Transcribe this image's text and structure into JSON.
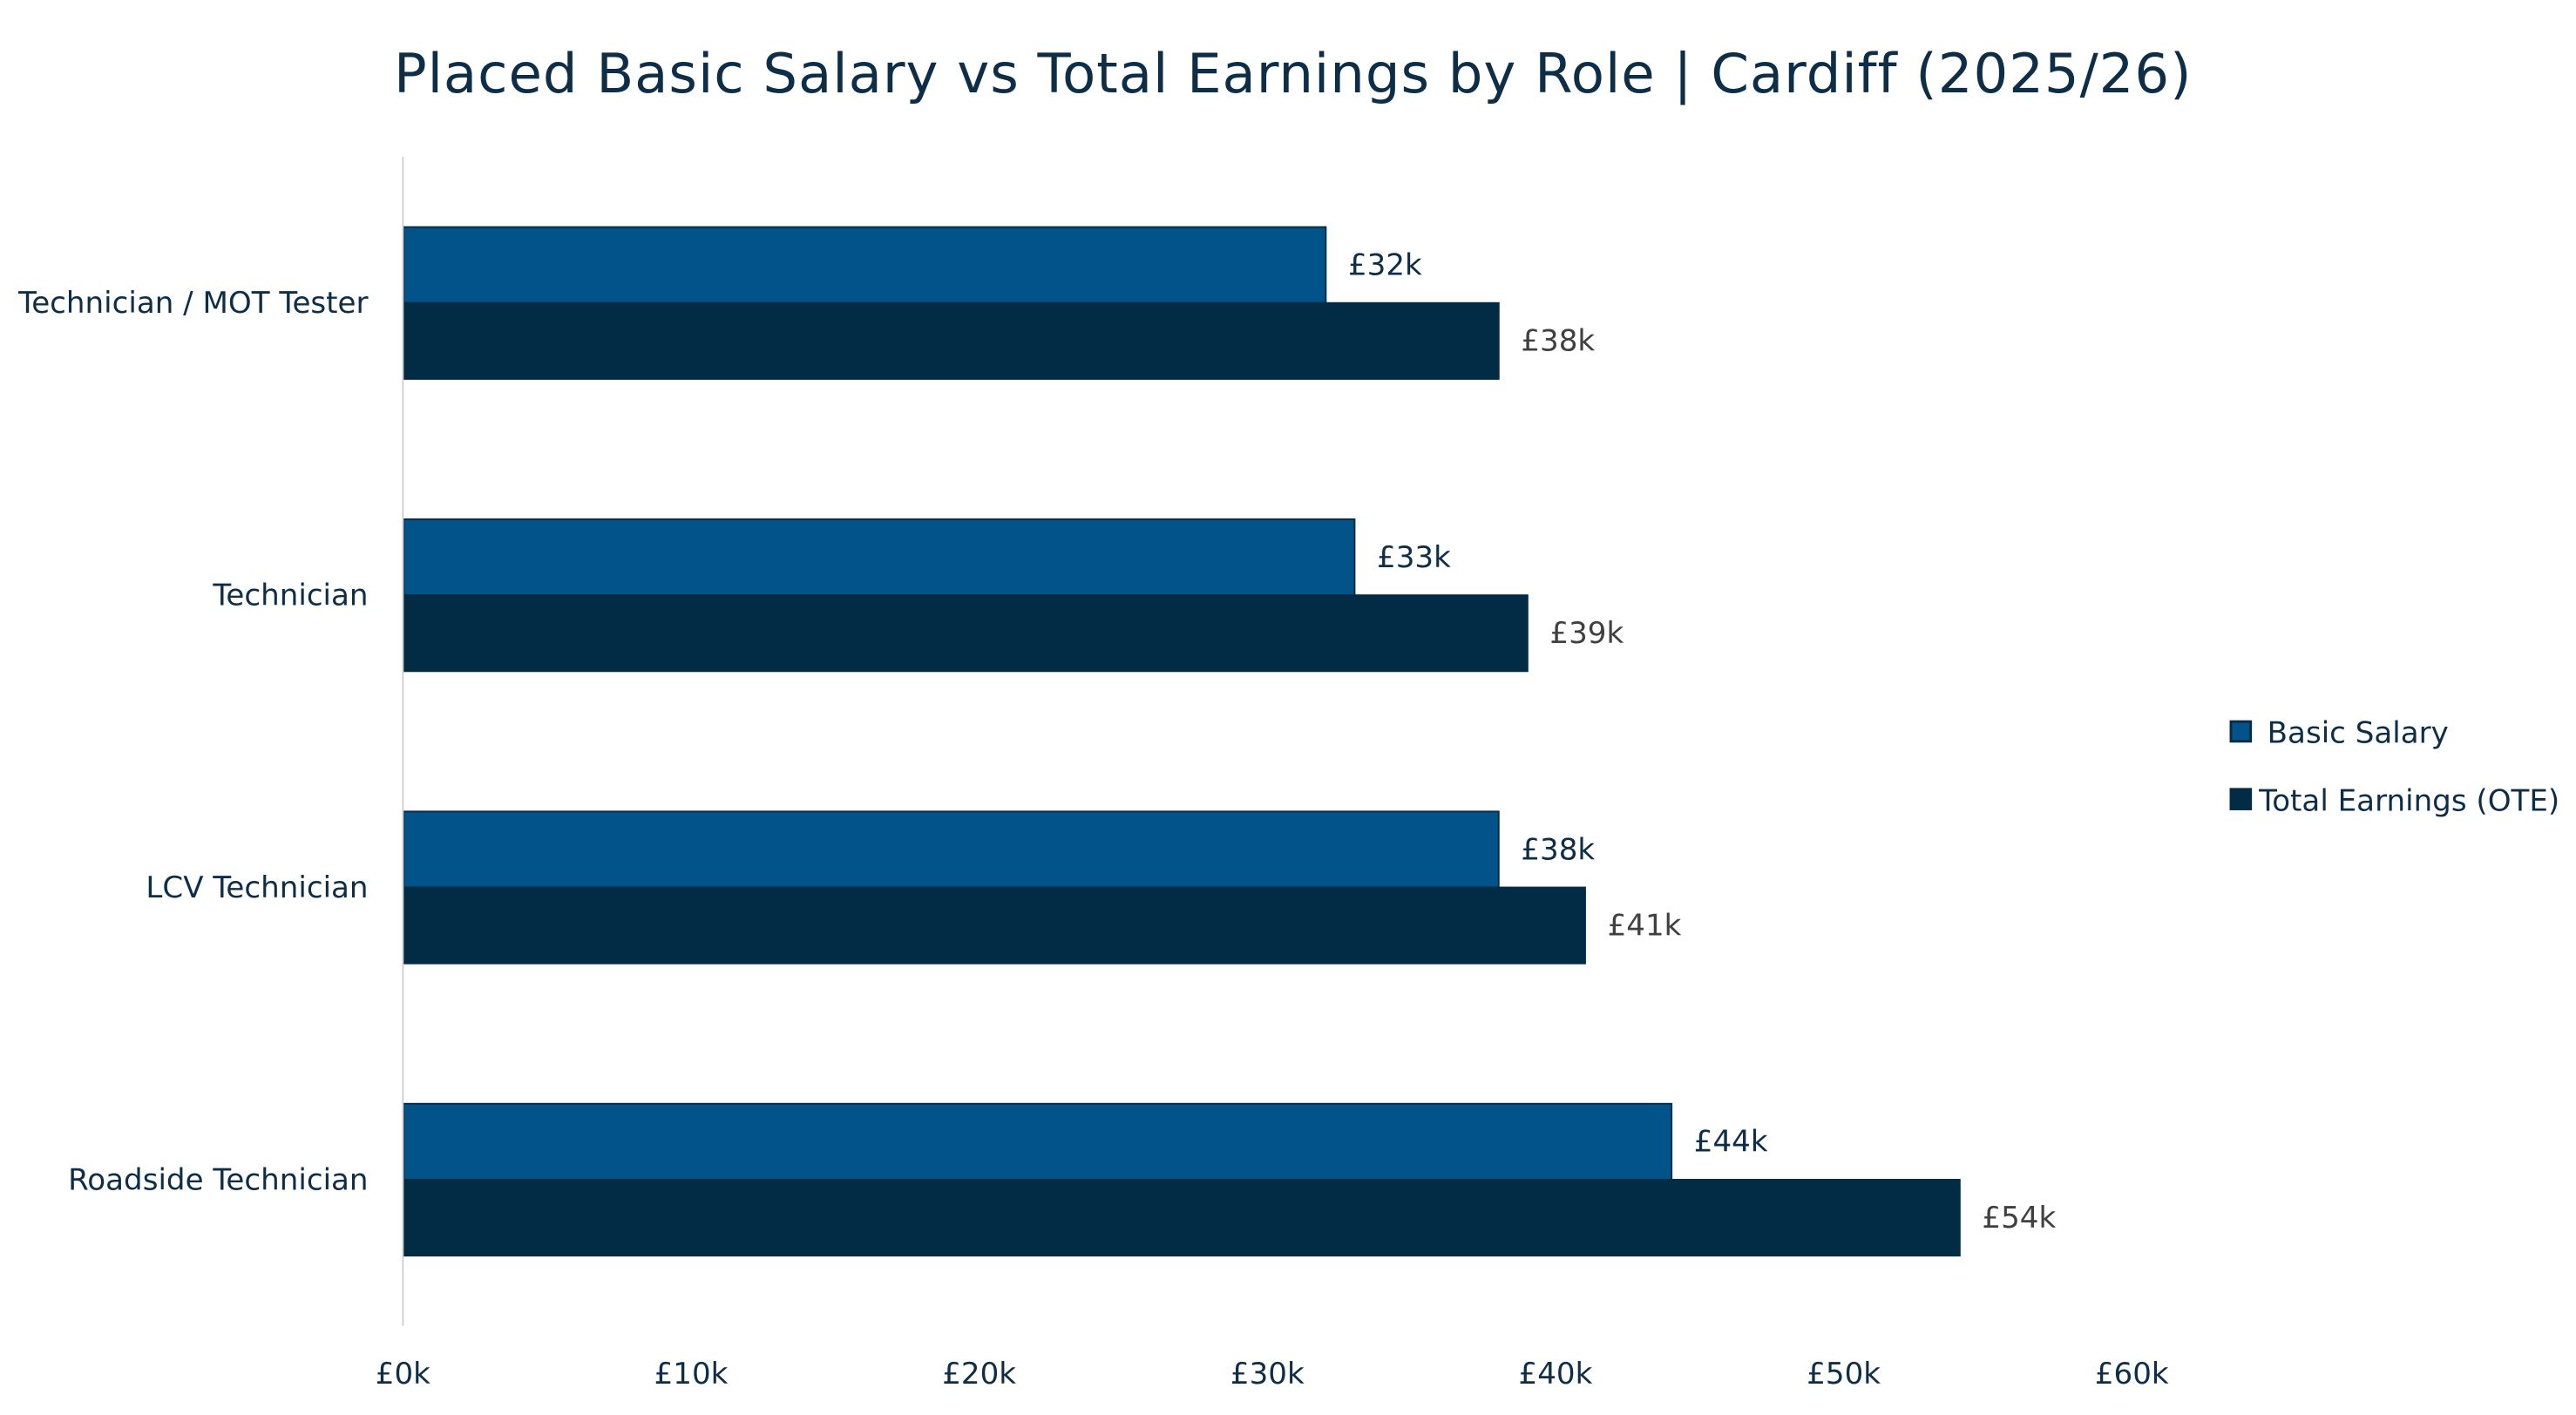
{
  "chart_data": {
    "type": "bar",
    "orientation": "horizontal",
    "title": "Placed Basic Salary vs Total Earnings by Role | Cardiff (2025/26)",
    "categories": [
      "Technician / MOT Tester",
      "Technician",
      "LCV Technician",
      "Roadside Technician"
    ],
    "series": [
      {
        "name": "Basic Salary",
        "color": "#02538a",
        "values": [
          32,
          33,
          38,
          44
        ],
        "labels": [
          "£32k",
          "£33k",
          "£38k",
          "£44k"
        ]
      },
      {
        "name": "Total Earnings (OTE)",
        "color": "#022b45",
        "values": [
          38,
          39,
          41,
          54
        ],
        "labels": [
          "£38k",
          "£39k",
          "£41k",
          "£54k"
        ]
      }
    ],
    "value_unit": "£k",
    "xlim": [
      0,
      60
    ],
    "xticks": [
      0,
      10,
      20,
      30,
      40,
      50,
      60
    ],
    "xtick_labels": [
      "£0k",
      "£10k",
      "£20k",
      "£30k",
      "£40k",
      "£50k",
      "£60k"
    ],
    "grid": false,
    "legend_position": "right"
  }
}
